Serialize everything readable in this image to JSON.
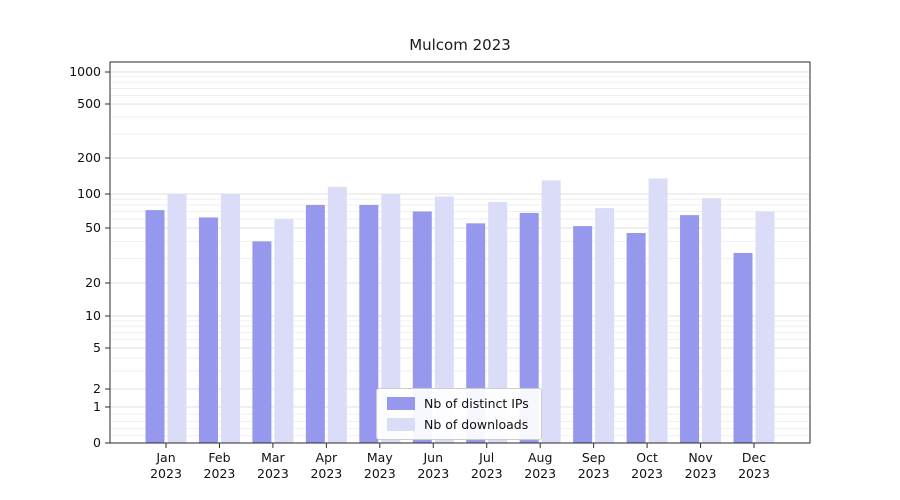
{
  "chart_data": {
    "type": "bar",
    "title": "Mulcom 2023",
    "categories": [
      "Jan 2023",
      "Feb 2023",
      "Mar 2023",
      "Apr 2023",
      "May 2023",
      "Jun 2023",
      "Jul 2023",
      "Aug 2023",
      "Sep 2023",
      "Oct 2023",
      "Nov 2023",
      "Dec 2023"
    ],
    "series": [
      {
        "name": "Nb of distinct IPs",
        "color": "#9598ec",
        "values": [
          72,
          62,
          40,
          80,
          80,
          70,
          55,
          68,
          52,
          46,
          65,
          33
        ]
      },
      {
        "name": "Nb of downloads",
        "color": "#dbdcf8",
        "values": [
          101,
          100,
          60,
          115,
          100,
          95,
          85,
          130,
          75,
          135,
          92,
          70
        ]
      }
    ],
    "yscale": "symlog",
    "yticks": [
      0,
      1,
      2,
      5,
      10,
      20,
      50,
      100,
      200,
      500,
      1000
    ],
    "ylim": [
      0,
      1200
    ],
    "grid": true,
    "legend_position": "lower center"
  }
}
